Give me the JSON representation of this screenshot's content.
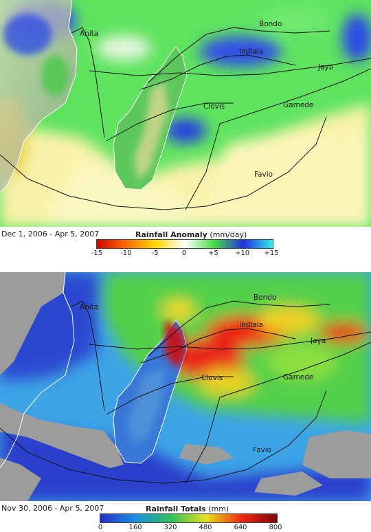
{
  "anomaly_map": {
    "date_range": "Dec 1, 2006 - Apr 5, 2007",
    "legend_title": "Rainfall Anomaly",
    "legend_unit": "(mm/day)",
    "legend_ticks": [
      "-15",
      "-10",
      "-5",
      "0",
      "+5",
      "+10",
      "+15"
    ],
    "colors": [
      "#d20000",
      "#ff6a00",
      "#ffd800",
      "#ffffff",
      "#44dd44",
      "#2030e0",
      "#33eeee"
    ]
  },
  "totals_map": {
    "date_range": "Nov 30, 2006 - Apr 5, 2007",
    "legend_title": "Rainfall Totals",
    "legend_unit": "(mm)",
    "legend_ticks": [
      "0",
      "160",
      "320",
      "480",
      "640",
      "800"
    ],
    "colors": [
      "#2433c8",
      "#1e8ee0",
      "#2ec05a",
      "#e8e020",
      "#ee2a10",
      "#7a0808"
    ]
  },
  "storm_tracks": {
    "anita": "Anita",
    "bondo": "Bondo",
    "indlala": "Indlala",
    "jaya": "Jaya",
    "clovis": "Clovis",
    "gamede": "Gamede",
    "favio": "Favio"
  }
}
